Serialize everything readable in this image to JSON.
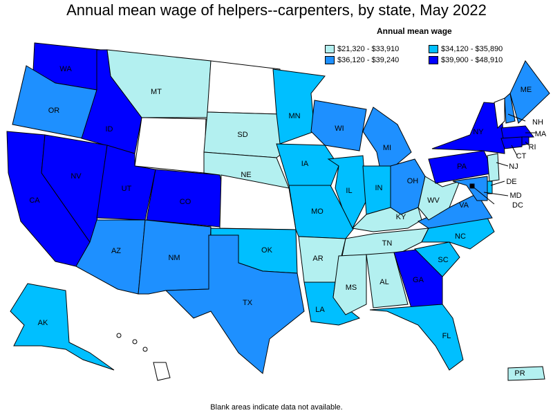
{
  "title": "Annual mean wage of helpers--carpenters, by state, May 2022",
  "legend": {
    "title": "Annual mean wage",
    "items": [
      {
        "label": "$21,320 - $33,910",
        "color": "#b3f0f0"
      },
      {
        "label": "$34,120 - $35,890",
        "color": "#00bfff"
      },
      {
        "label": "$36,120 - $39,240",
        "color": "#1e90ff"
      },
      {
        "label": "$39,900 - $48,910",
        "color": "#0000ff"
      }
    ]
  },
  "footer": "Blank areas indicate data not available.",
  "no_data_color": "#ffffff",
  "states": [
    {
      "abbr": "WA",
      "bin": 3
    },
    {
      "abbr": "OR",
      "bin": 2
    },
    {
      "abbr": "CA",
      "bin": 3
    },
    {
      "abbr": "ID",
      "bin": 3
    },
    {
      "abbr": "NV",
      "bin": 3
    },
    {
      "abbr": "MT",
      "bin": 0
    },
    {
      "abbr": "WY",
      "bin": null
    },
    {
      "abbr": "UT",
      "bin": 3
    },
    {
      "abbr": "CO",
      "bin": 3
    },
    {
      "abbr": "AZ",
      "bin": 2
    },
    {
      "abbr": "NM",
      "bin": 2
    },
    {
      "abbr": "ND",
      "bin": null
    },
    {
      "abbr": "SD",
      "bin": 0
    },
    {
      "abbr": "NE",
      "bin": 0
    },
    {
      "abbr": "KS",
      "bin": null
    },
    {
      "abbr": "OK",
      "bin": 1
    },
    {
      "abbr": "TX",
      "bin": 2
    },
    {
      "abbr": "MN",
      "bin": 1
    },
    {
      "abbr": "IA",
      "bin": 1
    },
    {
      "abbr": "MO",
      "bin": 1
    },
    {
      "abbr": "AR",
      "bin": 0
    },
    {
      "abbr": "LA",
      "bin": 1
    },
    {
      "abbr": "WI",
      "bin": 2
    },
    {
      "abbr": "IL",
      "bin": 1
    },
    {
      "abbr": "MI",
      "bin": 2
    },
    {
      "abbr": "IN",
      "bin": 1
    },
    {
      "abbr": "OH",
      "bin": 2
    },
    {
      "abbr": "KY",
      "bin": 0
    },
    {
      "abbr": "TN",
      "bin": 0
    },
    {
      "abbr": "MS",
      "bin": 0
    },
    {
      "abbr": "AL",
      "bin": 0
    },
    {
      "abbr": "GA",
      "bin": 3
    },
    {
      "abbr": "FL",
      "bin": 1
    },
    {
      "abbr": "SC",
      "bin": 1
    },
    {
      "abbr": "NC",
      "bin": 1
    },
    {
      "abbr": "VA",
      "bin": 2
    },
    {
      "abbr": "WV",
      "bin": 0
    },
    {
      "abbr": "PA",
      "bin": 3
    },
    {
      "abbr": "NY",
      "bin": 3
    },
    {
      "abbr": "VT",
      "bin": null
    },
    {
      "abbr": "NH",
      "bin": 2
    },
    {
      "abbr": "ME",
      "bin": 2
    },
    {
      "abbr": "MA",
      "bin": 3
    },
    {
      "abbr": "RI",
      "bin": 3
    },
    {
      "abbr": "CT",
      "bin": 3
    },
    {
      "abbr": "NJ",
      "bin": 0
    },
    {
      "abbr": "DE",
      "bin": 1
    },
    {
      "abbr": "MD",
      "bin": 2
    },
    {
      "abbr": "DC",
      "bin": 3
    },
    {
      "abbr": "AK",
      "bin": 1
    },
    {
      "abbr": "HI",
      "bin": null
    },
    {
      "abbr": "PR",
      "bin": 0
    }
  ]
}
